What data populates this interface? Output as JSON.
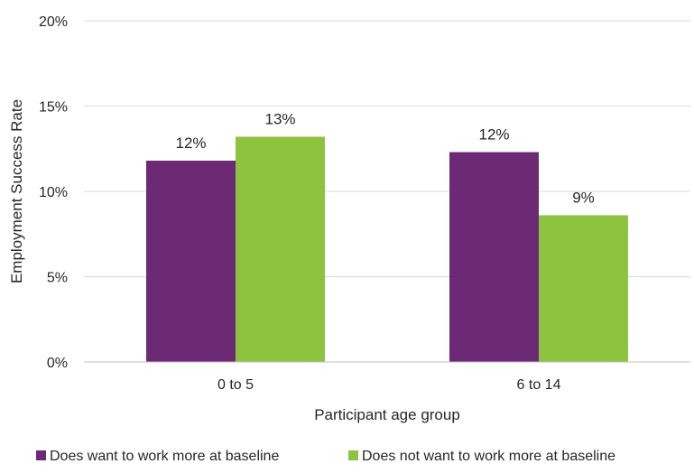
{
  "chart_data": {
    "type": "bar",
    "title": "",
    "xlabel": "Participant age group",
    "ylabel": "Employment Success Rate",
    "categories": [
      "0 to 5",
      "6 to 14"
    ],
    "series": [
      {
        "name": "Does want to work more at baseline",
        "values": [
          11.8,
          12.3
        ],
        "labels": [
          "12%",
          "12%"
        ],
        "color": "#6b2a73"
      },
      {
        "name": "Does not want to work more at baseline",
        "values": [
          13.2,
          8.6
        ],
        "labels": [
          "13%",
          "9%"
        ],
        "color": "#8cc43f"
      }
    ],
    "ylim": [
      0,
      20
    ],
    "yticks": [
      0,
      5,
      10,
      15,
      20
    ],
    "ytick_labels": [
      "0%",
      "5%",
      "10%",
      "15%",
      "20%"
    ],
    "grid": true,
    "grid_color": "#d9d9d9",
    "legend_position": "bottom"
  }
}
